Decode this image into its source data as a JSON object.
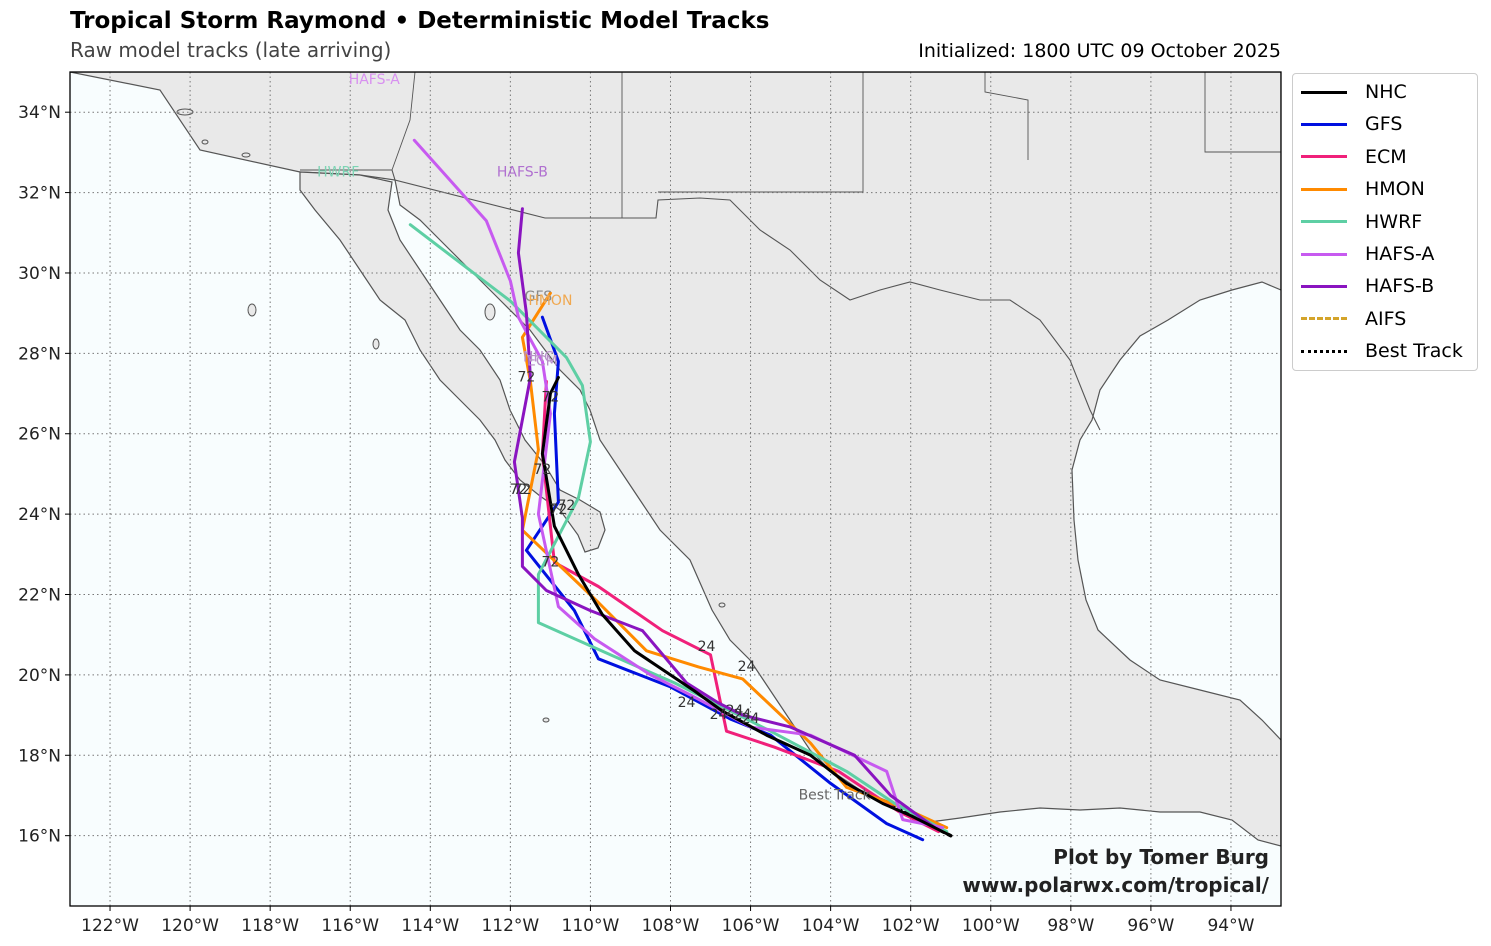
{
  "header": {
    "title": "Tropical Storm Raymond • Deterministic Model Tracks",
    "subtitle": "Raw model tracks (late arriving)",
    "initialized": "Initialized: 1800 UTC 09 October 2025"
  },
  "credit": {
    "line1": "Plot by Tomer Burg",
    "line2": "www.polarwx.com/tropical/"
  },
  "axes": {
    "lon_range": [
      -123,
      -92.75
    ],
    "lat_range": [
      14.25,
      35
    ],
    "lon_ticks": [
      {
        "value": -122,
        "label": "122°W"
      },
      {
        "value": -120,
        "label": "120°W"
      },
      {
        "value": -118,
        "label": "118°W"
      },
      {
        "value": -116,
        "label": "116°W"
      },
      {
        "value": -114,
        "label": "114°W"
      },
      {
        "value": -112,
        "label": "112°W"
      },
      {
        "value": -110,
        "label": "110°W"
      },
      {
        "value": -108,
        "label": "108°W"
      },
      {
        "value": -106,
        "label": "106°W"
      },
      {
        "value": -104,
        "label": "104°W"
      },
      {
        "value": -102,
        "label": "102°W"
      },
      {
        "value": -100,
        "label": "100°W"
      },
      {
        "value": -98,
        "label": "98°W"
      },
      {
        "value": -96,
        "label": "96°W"
      },
      {
        "value": -94,
        "label": "94°W"
      }
    ],
    "lat_ticks": [
      {
        "value": 16,
        "label": "16°N"
      },
      {
        "value": 18,
        "label": "18°N"
      },
      {
        "value": 20,
        "label": "20°N"
      },
      {
        "value": 22,
        "label": "22°N"
      },
      {
        "value": 24,
        "label": "24°N"
      },
      {
        "value": 26,
        "label": "26°N"
      },
      {
        "value": 28,
        "label": "28°N"
      },
      {
        "value": 30,
        "label": "30°N"
      },
      {
        "value": 32,
        "label": "32°N"
      },
      {
        "value": 34,
        "label": "34°N"
      }
    ],
    "gridlines": true
  },
  "colors": {
    "ocean": "#f8fdfe",
    "land": "#e9e9e9",
    "coast": "#555555"
  },
  "legend": [
    {
      "name": "NHC",
      "color": "#000000",
      "style": "solid"
    },
    {
      "name": "GFS",
      "color": "#0010e0",
      "style": "solid"
    },
    {
      "name": "ECM",
      "color": "#f0207a",
      "style": "solid"
    },
    {
      "name": "HMON",
      "color": "#ff8a00",
      "style": "solid"
    },
    {
      "name": "HWRF",
      "color": "#5ecfa4",
      "style": "solid"
    },
    {
      "name": "HAFS-A",
      "color": "#c75af0",
      "style": "solid"
    },
    {
      "name": "HAFS-B",
      "color": "#8a14c0",
      "style": "solid"
    },
    {
      "name": "AIFS",
      "color": "#d4a42a",
      "style": "dashed"
    },
    {
      "name": "Best Track",
      "color": "#000000",
      "style": "dotted"
    }
  ],
  "tracks": [
    {
      "name": "Best Track",
      "color": "#000000",
      "style": "dotted",
      "points": [
        [
          -101.0,
          16.0
        ],
        [
          -101.6,
          16.3
        ],
        [
          -102.2,
          16.6
        ],
        [
          -102.5,
          16.8
        ]
      ],
      "end_label": "Best Track",
      "end_label_color": "#666666",
      "end_label_at": [
        -103.9,
        16.9
      ]
    },
    {
      "name": "GFS",
      "color": "#0010e0",
      "style": "solid",
      "points": [
        [
          -101.7,
          15.9
        ],
        [
          -102.6,
          16.3
        ],
        [
          -104.0,
          17.3
        ],
        [
          -105.5,
          18.5
        ],
        [
          -106.5,
          18.9
        ],
        [
          -108.0,
          19.7
        ],
        [
          -109.8,
          20.4
        ],
        [
          -110.4,
          21.6
        ],
        [
          -111.6,
          23.1
        ],
        [
          -110.8,
          24.3
        ],
        [
          -110.9,
          26.5
        ],
        [
          -110.8,
          27.8
        ],
        [
          -111.2,
          28.9
        ]
      ],
      "hour_labels": [
        {
          "text": "24",
          "at": [
            -106.8,
            18.9
          ]
        },
        {
          "text": "72",
          "at": [
            -110.8,
            24.0
          ]
        }
      ],
      "end_label": "GFS",
      "end_label_color": "#888888",
      "end_label_at": [
        -111.3,
        29.3
      ]
    },
    {
      "name": "ECM",
      "color": "#f0207a",
      "style": "solid",
      "points": [
        [
          -101.3,
          16.1
        ],
        [
          -102.3,
          16.6
        ],
        [
          -103.8,
          17.6
        ],
        [
          -105.4,
          18.2
        ],
        [
          -106.6,
          18.6
        ],
        [
          -107.0,
          20.5
        ],
        [
          -108.2,
          21.1
        ],
        [
          -109.8,
          22.2
        ],
        [
          -110.9,
          22.8
        ],
        [
          -111.2,
          25.5
        ],
        [
          -111.1,
          27.3
        ]
      ],
      "hour_labels": [
        {
          "text": "24",
          "at": [
            -107.1,
            20.6
          ]
        },
        {
          "text": "72",
          "at": [
            -111.0,
            26.8
          ]
        }
      ],
      "end_label": "ECM",
      "end_label_color": "#b890c8",
      "end_label_at": [
        -111.2,
        27.7
      ]
    },
    {
      "name": "HMON",
      "color": "#ff8a00",
      "style": "solid",
      "points": [
        [
          -101.1,
          16.2
        ],
        [
          -102.2,
          16.7
        ],
        [
          -103.6,
          17.2
        ],
        [
          -104.5,
          18.3
        ],
        [
          -106.2,
          19.9
        ],
        [
          -107.3,
          20.2
        ],
        [
          -108.6,
          20.6
        ],
        [
          -109.8,
          21.8
        ],
        [
          -111.7,
          23.6
        ],
        [
          -111.3,
          25.6
        ],
        [
          -111.5,
          27.3
        ],
        [
          -111.7,
          28.4
        ],
        [
          -111.0,
          29.5
        ]
      ],
      "hour_labels": [
        {
          "text": "24",
          "at": [
            -106.1,
            20.1
          ]
        },
        {
          "text": "72",
          "at": [
            -111.7,
            24.5
          ]
        }
      ],
      "end_label": "HMON",
      "end_label_color": "#f0a850",
      "end_label_at": [
        -111.0,
        29.2
      ]
    },
    {
      "name": "HWRF",
      "color": "#5ecfa4",
      "style": "solid",
      "points": [
        [
          -101.1,
          16.1
        ],
        [
          -102.4,
          16.8
        ],
        [
          -103.6,
          17.6
        ],
        [
          -105.5,
          18.6
        ],
        [
          -107.9,
          19.8
        ],
        [
          -109.5,
          20.5
        ],
        [
          -111.3,
          21.3
        ],
        [
          -111.3,
          22.5
        ],
        [
          -110.3,
          24.4
        ],
        [
          -110.0,
          25.8
        ],
        [
          -110.2,
          27.2
        ],
        [
          -110.6,
          27.9
        ],
        [
          -112.0,
          29.3
        ],
        [
          -114.5,
          31.2
        ]
      ],
      "hour_labels": [
        {
          "text": "24",
          "at": [
            -107.6,
            19.2
          ]
        },
        {
          "text": "72",
          "at": [
            -110.6,
            24.1
          ]
        }
      ],
      "end_label": "HWRF",
      "end_label_color": "#7dd4b4",
      "end_label_at": [
        -116.3,
        32.4
      ]
    },
    {
      "name": "HAFS-A",
      "color": "#c75af0",
      "style": "solid",
      "points": [
        [
          -101.2,
          16.2
        ],
        [
          -102.2,
          16.4
        ],
        [
          -102.6,
          17.6
        ],
        [
          -104.5,
          18.5
        ],
        [
          -106.0,
          18.7
        ],
        [
          -107.5,
          19.5
        ],
        [
          -108.5,
          20.0
        ],
        [
          -109.9,
          20.9
        ],
        [
          -110.8,
          21.7
        ],
        [
          -111.3,
          24.0
        ],
        [
          -111.0,
          26.5
        ],
        [
          -111.2,
          27.8
        ],
        [
          -111.8,
          28.9
        ],
        [
          -112.0,
          29.8
        ],
        [
          -112.6,
          31.3
        ],
        [
          -114.4,
          33.3
        ]
      ],
      "hour_labels": [
        {
          "text": "24",
          "at": [
            -106.0,
            18.8
          ]
        },
        {
          "text": "72",
          "at": [
            -111.0,
            22.7
          ]
        }
      ],
      "end_label": "HAFS-A",
      "end_label_color": "#d890f0",
      "end_label_at": [
        -115.4,
        34.7
      ]
    },
    {
      "name": "HAFS-B",
      "color": "#8a14c0",
      "style": "solid",
      "points": [
        [
          -101.4,
          16.2
        ],
        [
          -102.5,
          17.0
        ],
        [
          -103.4,
          18.0
        ],
        [
          -105.0,
          18.7
        ],
        [
          -106.2,
          19.0
        ],
        [
          -106.8,
          19.3
        ],
        [
          -107.6,
          19.8
        ],
        [
          -108.7,
          21.1
        ],
        [
          -110.0,
          21.6
        ],
        [
          -111.1,
          22.1
        ],
        [
          -111.7,
          22.7
        ],
        [
          -111.7,
          23.9
        ],
        [
          -111.9,
          25.3
        ],
        [
          -111.5,
          27.4
        ],
        [
          -111.6,
          29.0
        ],
        [
          -111.8,
          30.5
        ],
        [
          -111.7,
          31.6
        ]
      ],
      "hour_labels": [
        {
          "text": "24",
          "at": [
            -106.4,
            19.0
          ]
        },
        {
          "text": "72",
          "at": [
            -111.8,
            24.5
          ]
        }
      ],
      "end_label": "HAFS-B",
      "end_label_color": "#b070d0",
      "end_label_at": [
        -111.7,
        32.4
      ]
    },
    {
      "name": "NHC",
      "color": "#000000",
      "style": "solid",
      "points": [
        [
          -101.0,
          16.0
        ],
        [
          -102.0,
          16.5
        ],
        [
          -102.7,
          16.8
        ],
        [
          -103.6,
          17.3
        ],
        [
          -104.5,
          18.0
        ],
        [
          -105.6,
          18.5
        ],
        [
          -106.7,
          19.1
        ],
        [
          -107.4,
          19.6
        ],
        [
          -108.9,
          20.6
        ],
        [
          -109.7,
          21.5
        ],
        [
          -110.3,
          22.5
        ],
        [
          -110.9,
          23.7
        ],
        [
          -111.2,
          25.5
        ],
        [
          -111.0,
          27.0
        ],
        [
          -110.8,
          27.4
        ]
      ],
      "hour_labels": [
        {
          "text": "24",
          "at": [
            -106.2,
            18.9
          ]
        },
        {
          "text": "72",
          "at": [
            -111.2,
            25.0
          ]
        },
        {
          "text": "72",
          "at": [
            -111.6,
            27.3
          ]
        }
      ],
      "end_label": "NHC",
      "end_label_color": "#b890c8",
      "end_label_at": [
        -111.3,
        27.8
      ]
    }
  ]
}
